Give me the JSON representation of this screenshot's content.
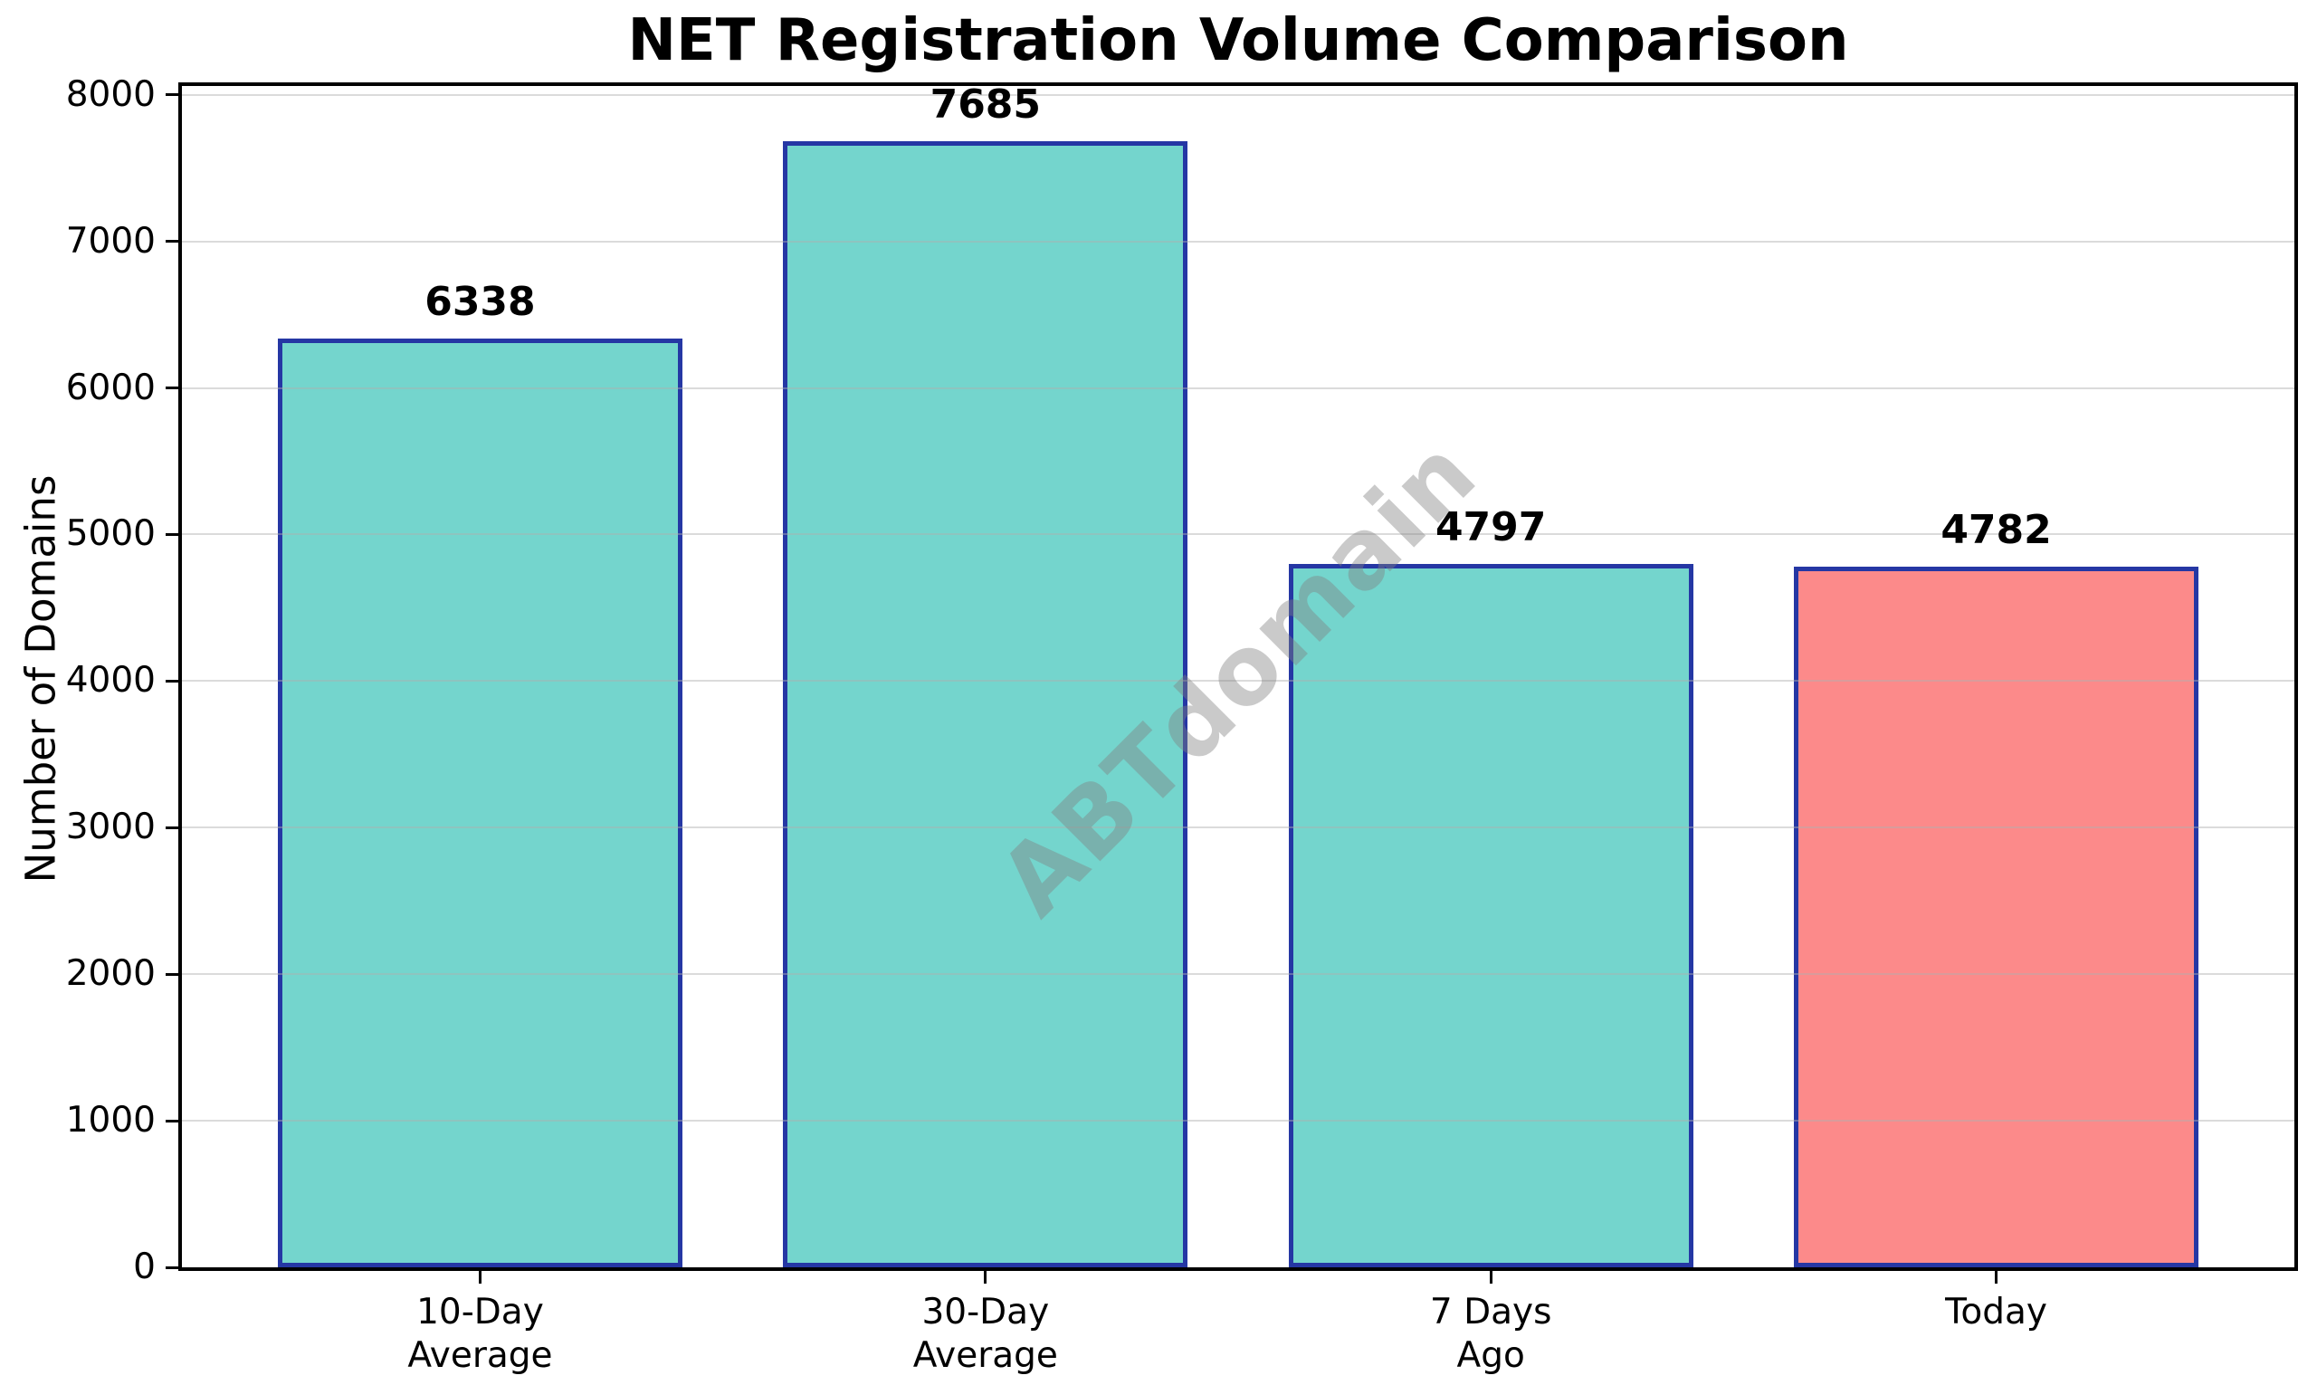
{
  "chart_data": {
    "type": "bar",
    "title": "NET Registration Volume Comparison",
    "ylabel": "Number of Domains",
    "xlabel": "",
    "categories": [
      "10-Day Average",
      "30-Day Average",
      "7 Days Ago",
      "Today"
    ],
    "category_lines": [
      [
        "10-Day",
        "Average"
      ],
      [
        "30-Day",
        "Average"
      ],
      [
        "7 Days",
        "Ago"
      ],
      [
        "Today"
      ]
    ],
    "values": [
      6338,
      7685,
      4797,
      4782
    ],
    "value_labels": [
      "6338",
      "7685",
      "4797",
      "4782"
    ],
    "bar_colors": [
      "#74D5CD",
      "#74D5CD",
      "#74D5CD",
      "#FC8A8A"
    ],
    "bar_edge_color": "#2537A4",
    "ylim": [
      0,
      8000
    ],
    "yticks": [
      0,
      1000,
      2000,
      3000,
      4000,
      5000,
      6000,
      7000,
      8000
    ],
    "grid": true,
    "grid_color": "rgba(176,176,176,0.45)",
    "grid_over_bars": true,
    "watermark": "ABTdomain",
    "legend_position": "none",
    "colors": {
      "background": "#ffffff",
      "spine": "#000000",
      "text": "#000000"
    }
  }
}
